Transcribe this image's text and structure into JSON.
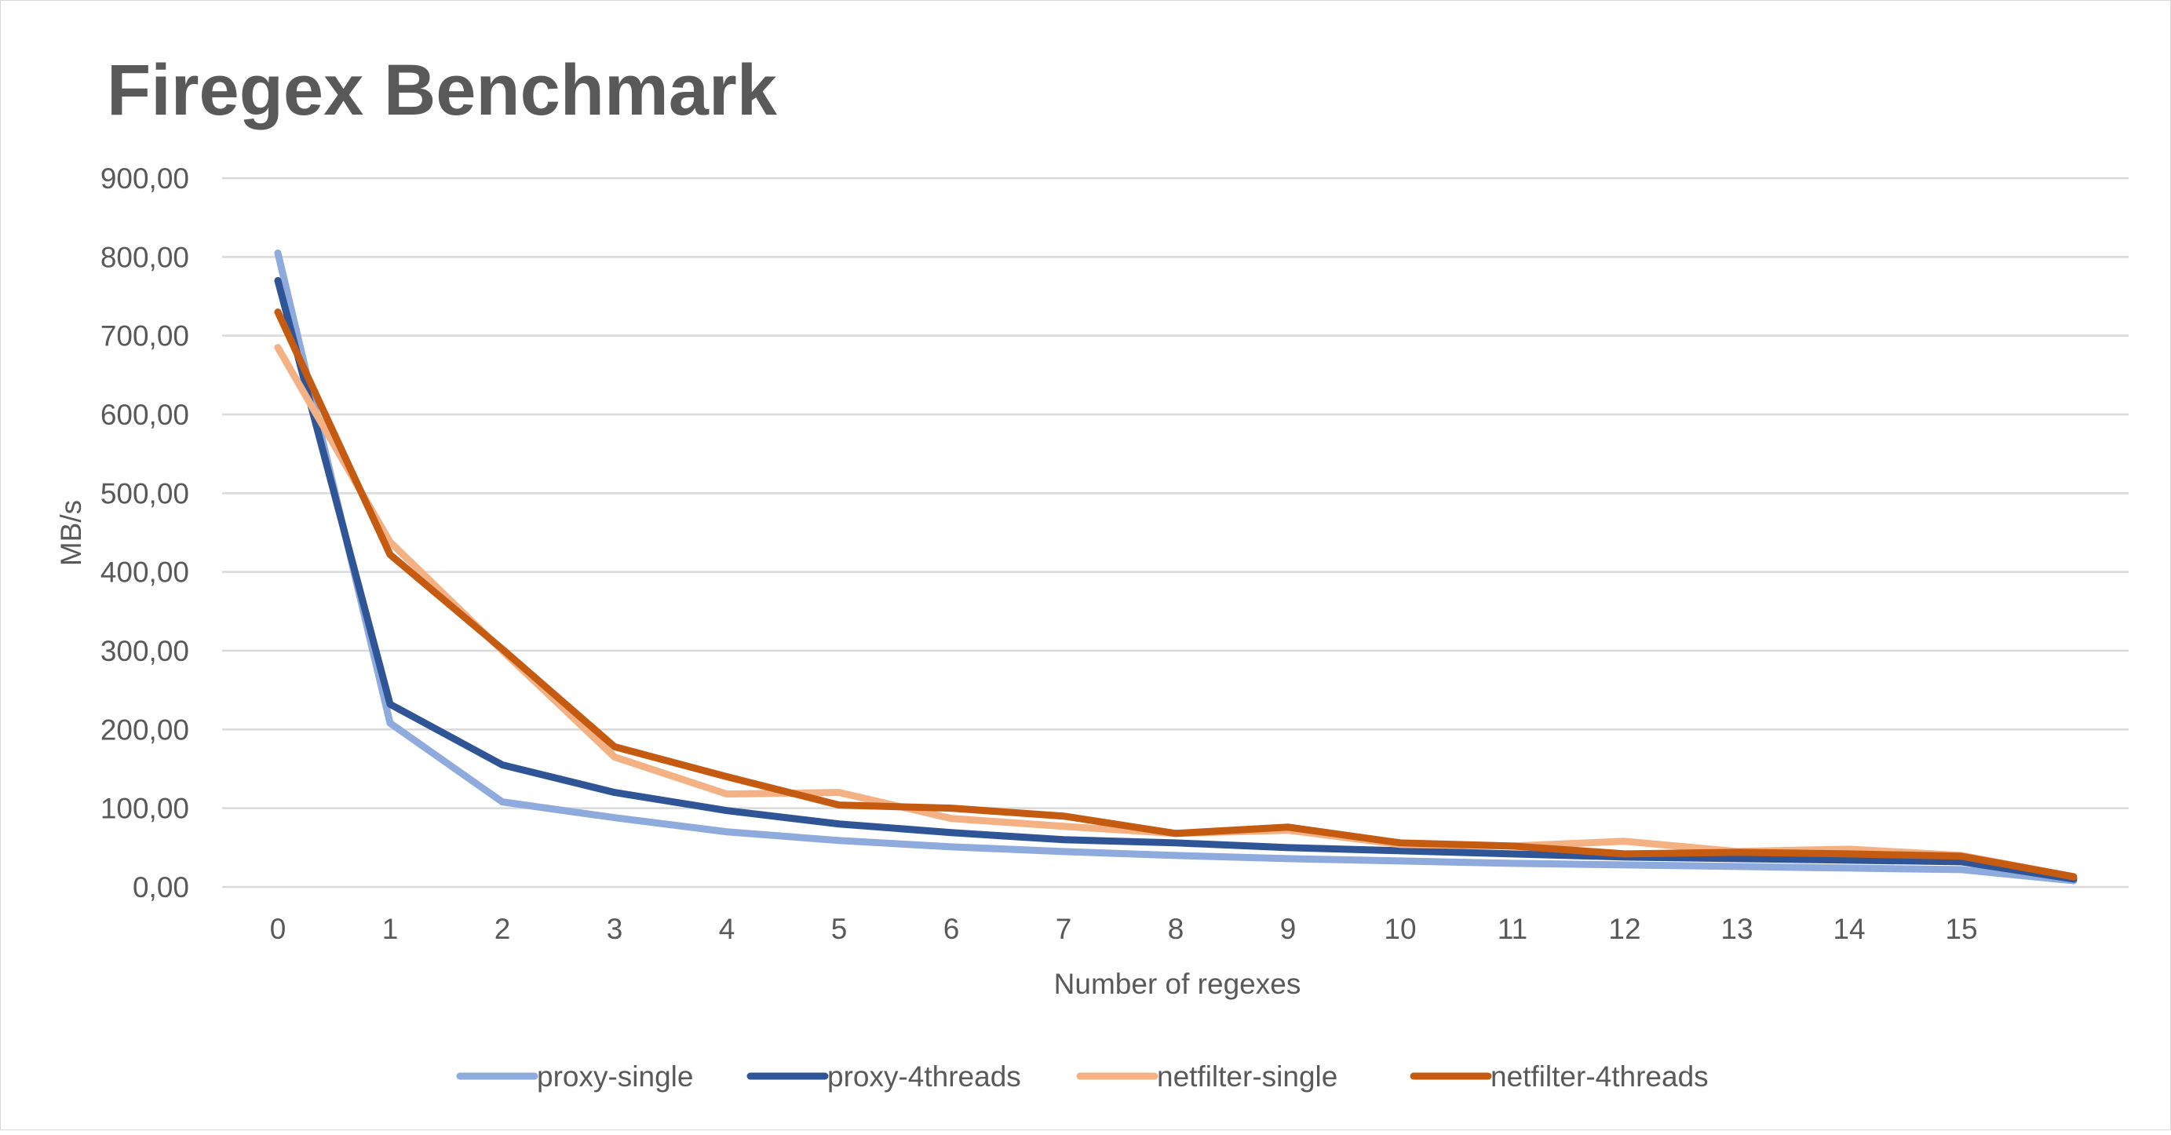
{
  "chart_data": {
    "type": "line",
    "title": "Firegex Benchmark",
    "xlabel": "Number of regexes",
    "ylabel": "MB/s",
    "categories": [
      "0",
      "1",
      "2",
      "3",
      "4",
      "5",
      "6",
      "7",
      "8",
      "9",
      "10",
      "11",
      "12",
      "13",
      "14",
      "15",
      ""
    ],
    "ylim": [
      0,
      900
    ],
    "yticks": [
      "0,00",
      "100,00",
      "200,00",
      "300,00",
      "400,00",
      "500,00",
      "600,00",
      "700,00",
      "800,00",
      "900,00"
    ],
    "grid": true,
    "legend_position": "bottom",
    "series": [
      {
        "name": "proxy-single",
        "color": "#8faadc",
        "values": [
          805,
          208,
          108,
          88,
          70,
          59,
          51,
          45,
          40,
          36,
          33,
          30,
          28,
          26,
          24,
          22,
          8
        ]
      },
      {
        "name": "proxy-4threads",
        "color": "#2f5597",
        "values": [
          770,
          232,
          155,
          120,
          97,
          80,
          69,
          60,
          56,
          50,
          46,
          42,
          38,
          36,
          34,
          32,
          10
        ]
      },
      {
        "name": "netfilter-single",
        "color": "#f4b183",
        "values": [
          685,
          438,
          300,
          165,
          118,
          120,
          87,
          77,
          68,
          72,
          54,
          52,
          58,
          45,
          48,
          40,
          13
        ]
      },
      {
        "name": "netfilter-4threads",
        "color": "#c55a11",
        "values": [
          730,
          422,
          302,
          178,
          140,
          104,
          100,
          90,
          68,
          76,
          56,
          52,
          42,
          44,
          42,
          39,
          13
        ]
      }
    ]
  }
}
